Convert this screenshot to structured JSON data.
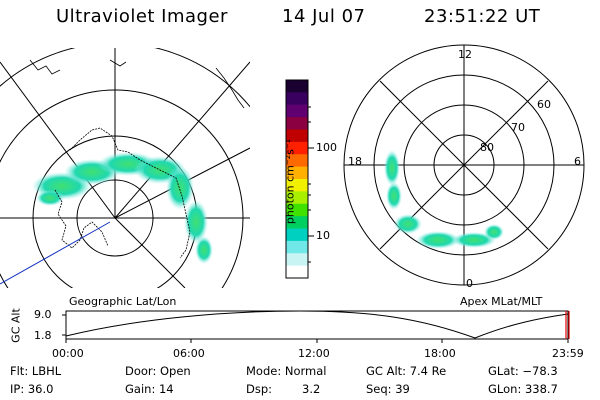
{
  "header": {
    "title": "Ultraviolet Imager",
    "date": "14 Jul 07",
    "time": "23:51:22 UT"
  },
  "colorbar": {
    "unit_label": "photon cm⁻²s⁻¹",
    "ticks": [
      "100",
      "10"
    ],
    "colors": [
      "#1a0030",
      "#3a0060",
      "#600070",
      "#8a0040",
      "#c00000",
      "#ff2000",
      "#ff6a00",
      "#ffb000",
      "#f0f000",
      "#a8f000",
      "#40e000",
      "#00d060",
      "#00d0c0",
      "#70e8e8",
      "#c8f4f4",
      "#ffffff"
    ]
  },
  "left_panel": {
    "caption": "Geographic Lat/Lon"
  },
  "right_panel": {
    "caption": "Apex MLat/MLT",
    "mlt_labels": {
      "top": "12",
      "left": "18",
      "right": "6",
      "bottom": "0"
    },
    "lat_labels": [
      "80",
      "70",
      "60"
    ]
  },
  "timeline": {
    "ylabel": "GC Alt",
    "yticks": [
      "9.0",
      "1.8"
    ],
    "xticks": [
      "00:00",
      "06:00",
      "12:00",
      "18:00",
      "23:59"
    ]
  },
  "info": {
    "flt": "Flt: LBHL",
    "ip": "IP: 36.0",
    "door": "Door: Open",
    "gain": "Gain: 14",
    "mode": "Mode: Normal",
    "dsp_label": "Dsp:",
    "dsp_value": "3.2",
    "gc_alt": "GC Alt: 7.4 Re",
    "seq": "Seq: 39",
    "glat": "GLat: −78.3",
    "glon": "GLon: 338.7"
  }
}
